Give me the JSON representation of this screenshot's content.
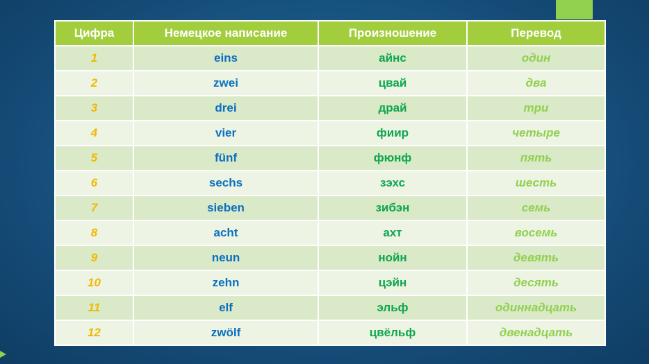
{
  "table": {
    "headers": [
      "Цифра",
      "Немецкое написание",
      "Произношение",
      "Перевод"
    ],
    "rows": [
      [
        "1",
        "eins",
        "айнс",
        "один"
      ],
      [
        "2",
        "zwei",
        "цвай",
        "два"
      ],
      [
        "3",
        "drei",
        "драй",
        "три"
      ],
      [
        "4",
        "vier",
        "фиир",
        "четыре"
      ],
      [
        "5",
        "fünf",
        "фюнф",
        "пять"
      ],
      [
        "6",
        "sechs",
        "зэхс",
        "шесть"
      ],
      [
        "7",
        "sieben",
        "зибэн",
        "семь"
      ],
      [
        "8",
        "acht",
        "ахт",
        "восемь"
      ],
      [
        "9",
        "neun",
        "нойн",
        "девять"
      ],
      [
        "10",
        "zehn",
        "цэйн",
        "десять"
      ],
      [
        "11",
        "elf",
        "эльф",
        "одиннадцать"
      ],
      [
        "12",
        "zwölf",
        "цвёльф",
        "двенадцать"
      ]
    ]
  },
  "colors": {
    "header_bg": "#a2cd3d",
    "row_dark": "#dae9c8",
    "row_light": "#edf4e4",
    "digit": "#f2b800",
    "german": "#0b6fc0",
    "pronunciation": "#0ea54e",
    "translation": "#92d050",
    "accent": "#92d050"
  }
}
